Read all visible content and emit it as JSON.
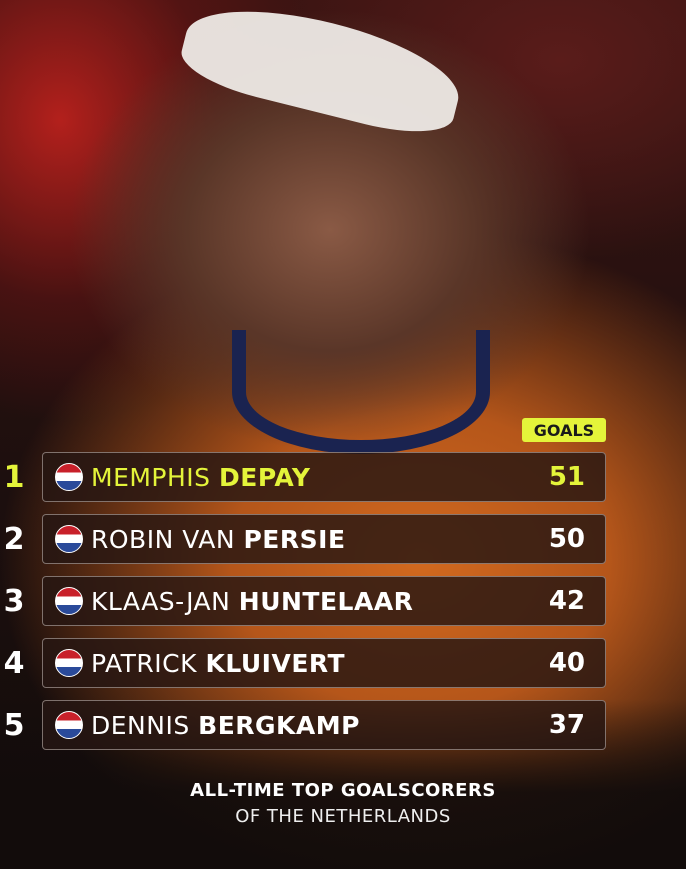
{
  "header": {
    "goals_label": "GOALS"
  },
  "rows": [
    {
      "rank": "1",
      "first": "MEMPHIS",
      "last": "DEPAY",
      "goals": "51",
      "flag": "netherlands-flag-icon",
      "highlight": true
    },
    {
      "rank": "2",
      "first": "ROBIN VAN",
      "last": "PERSIE",
      "goals": "50",
      "flag": "netherlands-flag-icon",
      "highlight": false
    },
    {
      "rank": "3",
      "first": "KLAAS-JAN",
      "last": "HUNTELAAR",
      "goals": "42",
      "flag": "netherlands-flag-icon",
      "highlight": false
    },
    {
      "rank": "4",
      "first": "PATRICK",
      "last": "KLUIVERT",
      "goals": "40",
      "flag": "netherlands-flag-icon",
      "highlight": false
    },
    {
      "rank": "5",
      "first": "DENNIS",
      "last": "BERGKAMP",
      "goals": "37",
      "flag": "netherlands-flag-icon",
      "highlight": false
    }
  ],
  "footer": {
    "title": "ALL-TIME TOP GOALSCORERS",
    "subtitle": "OF THE NETHERLANDS"
  },
  "colors": {
    "accent": "#e4f43a",
    "jersey": "#d2691f"
  }
}
